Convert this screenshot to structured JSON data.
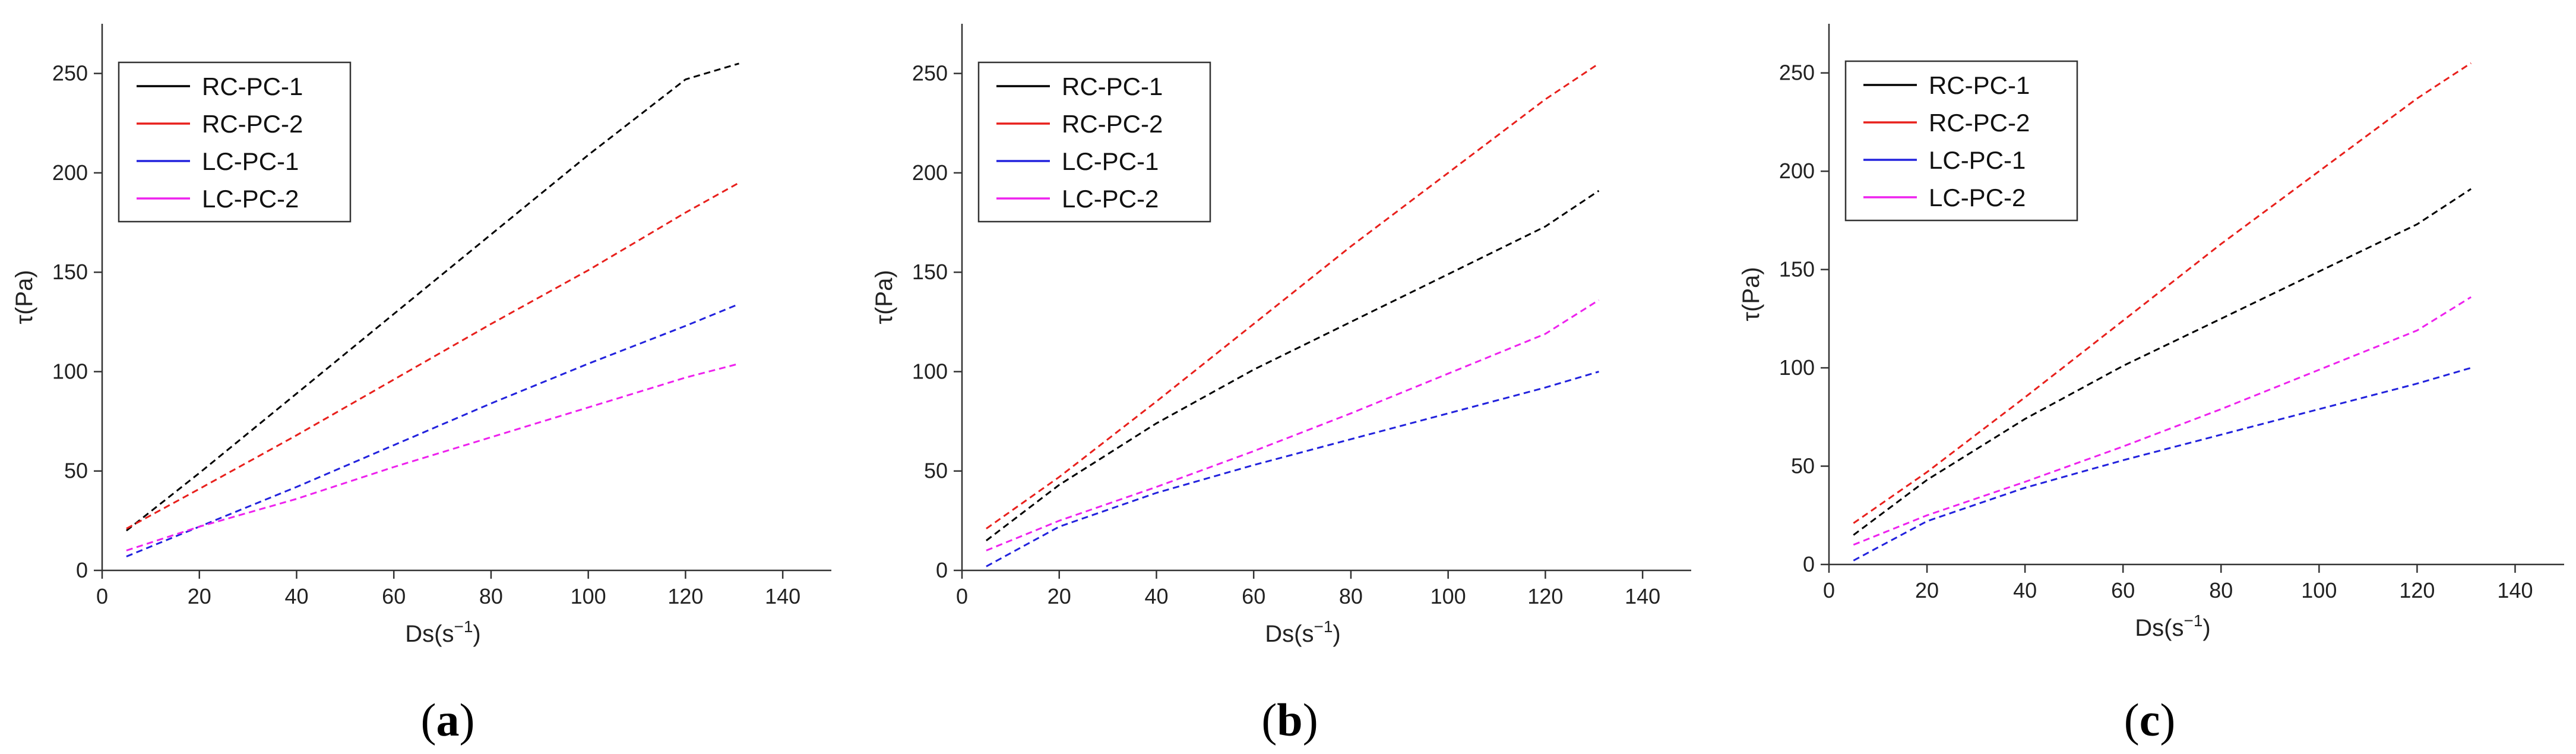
{
  "colors": {
    "RC-PC-1": "#000000",
    "RC-PC-2": "#e8201c",
    "LC-PC-1": "#2222dd",
    "LC-PC-2": "#ee22ee"
  },
  "chart_data": [
    {
      "type": "line",
      "caption_open": "(",
      "caption_letter": "a",
      "caption_close": ")",
      "xlabel": "Ds(s",
      "xlabel_sup": "−1",
      "xlabel_close": ")",
      "ylabel": "τ(Pa)",
      "xlim": [
        0,
        150
      ],
      "ylim": [
        0,
        275
      ],
      "xticks": [
        0,
        20,
        40,
        60,
        80,
        100,
        120,
        140
      ],
      "yticks": [
        0,
        50,
        100,
        150,
        200,
        250
      ],
      "line_style": "dashed",
      "legend": [
        "RC-PC-1",
        "RC-PC-2",
        "LC-PC-1",
        "LC-PC-2"
      ],
      "legend_position": "top-left",
      "series": [
        {
          "name": "RC-PC-1",
          "x": [
            5,
            20,
            40,
            60,
            80,
            100,
            120,
            131
          ],
          "y": [
            20,
            49,
            89,
            129,
            169,
            209,
            247,
            255
          ]
        },
        {
          "name": "RC-PC-2",
          "x": [
            5,
            20,
            40,
            60,
            80,
            100,
            120,
            131
          ],
          "y": [
            21,
            41,
            68,
            96,
            124,
            151,
            180,
            195
          ]
        },
        {
          "name": "LC-PC-1",
          "x": [
            5,
            20,
            40,
            60,
            80,
            100,
            120,
            131
          ],
          "y": [
            7,
            22,
            42,
            63,
            84,
            104,
            123,
            134
          ]
        },
        {
          "name": "LC-PC-2",
          "x": [
            5,
            20,
            40,
            60,
            80,
            100,
            120,
            131
          ],
          "y": [
            10,
            22,
            36,
            52,
            67,
            82,
            97,
            104
          ]
        }
      ]
    },
    {
      "type": "line",
      "caption_open": "(",
      "caption_letter": "b",
      "caption_close": ")",
      "xlabel": "Ds(s",
      "xlabel_sup": "−1",
      "xlabel_close": ")",
      "ylabel": "τ(Pa)",
      "xlim": [
        0,
        150
      ],
      "ylim": [
        0,
        275
      ],
      "xticks": [
        0,
        20,
        40,
        60,
        80,
        100,
        120,
        140
      ],
      "yticks": [
        0,
        50,
        100,
        150,
        200,
        250
      ],
      "line_style": "dashed",
      "legend": [
        "RC-PC-1",
        "RC-PC-2",
        "LC-PC-1",
        "LC-PC-2"
      ],
      "legend_position": "top-left",
      "series": [
        {
          "name": "RC-PC-1",
          "x": [
            5,
            20,
            40,
            60,
            80,
            100,
            120,
            131
          ],
          "y": [
            15,
            43,
            74,
            101,
            125,
            149,
            173,
            191
          ]
        },
        {
          "name": "RC-PC-2",
          "x": [
            5,
            20,
            40,
            60,
            80,
            100,
            120,
            131
          ],
          "y": [
            21,
            47,
            85,
            124,
            163,
            200,
            237,
            255
          ]
        },
        {
          "name": "LC-PC-1",
          "x": [
            5,
            20,
            40,
            60,
            80,
            100,
            120,
            131
          ],
          "y": [
            2,
            22,
            39,
            53,
            66,
            79,
            92,
            100
          ]
        },
        {
          "name": "LC-PC-2",
          "x": [
            5,
            20,
            40,
            60,
            80,
            100,
            120,
            131
          ],
          "y": [
            10,
            25,
            42,
            60,
            79,
            99,
            119,
            136
          ]
        }
      ]
    },
    {
      "type": "line",
      "caption_open": "(",
      "caption_letter": "c",
      "caption_close": ")",
      "xlabel": "Ds(s",
      "xlabel_sup": "−1",
      "xlabel_close": ")",
      "ylabel": "τ(Pa)",
      "xlim": [
        0,
        150
      ],
      "ylim": [
        0,
        275
      ],
      "xticks": [
        0,
        20,
        40,
        60,
        80,
        100,
        120,
        140
      ],
      "yticks": [
        0,
        50,
        100,
        150,
        200,
        250
      ],
      "line_style": "dashed",
      "legend": [
        "RC-PC-1",
        "RC-PC-2",
        "LC-PC-1",
        "LC-PC-2"
      ],
      "legend_position": "top-left",
      "series": [
        {
          "name": "RC-PC-1",
          "x": [
            5,
            20,
            40,
            60,
            80,
            100,
            120,
            131
          ],
          "y": [
            15,
            43,
            74,
            101,
            125,
            149,
            173,
            191
          ]
        },
        {
          "name": "RC-PC-2",
          "x": [
            5,
            20,
            40,
            60,
            80,
            100,
            120,
            131
          ],
          "y": [
            21,
            47,
            85,
            124,
            163,
            200,
            237,
            255
          ]
        },
        {
          "name": "LC-PC-1",
          "x": [
            5,
            20,
            40,
            60,
            80,
            100,
            120,
            131
          ],
          "y": [
            2,
            22,
            39,
            53,
            66,
            79,
            92,
            100
          ]
        },
        {
          "name": "LC-PC-2",
          "x": [
            5,
            20,
            40,
            60,
            80,
            100,
            120,
            131
          ],
          "y": [
            10,
            25,
            42,
            60,
            79,
            99,
            119,
            136
          ]
        }
      ]
    }
  ]
}
